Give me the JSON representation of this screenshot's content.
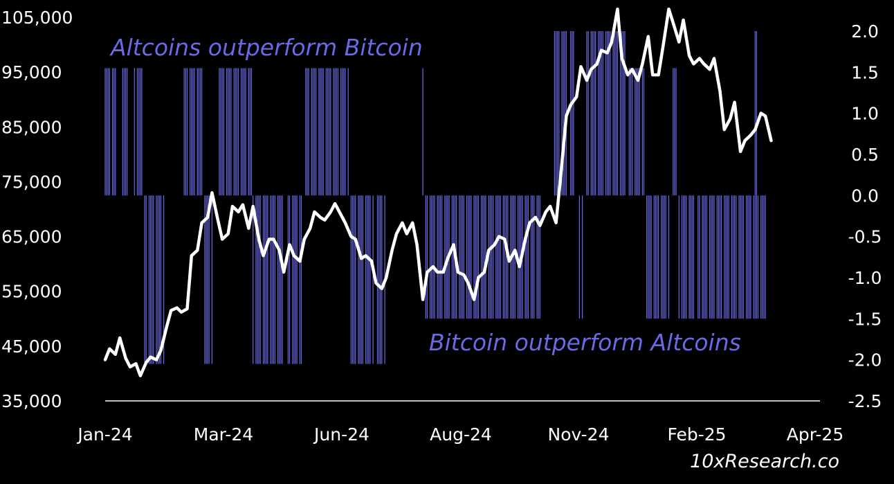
{
  "chart_data": {
    "type": "line",
    "title": "",
    "xlabel": "",
    "ylabel": "",
    "y_left": {
      "ticks": [
        35000,
        45000,
        55000,
        65000,
        75000,
        85000,
        95000,
        105000
      ],
      "tick_labels": [
        "35,000",
        "45,000",
        "55,000",
        "65,000",
        "75,000",
        "85,000",
        "95,000",
        "105,000"
      ],
      "range": [
        35000,
        105000
      ]
    },
    "y_right": {
      "ticks": [
        -2.5,
        -2.0,
        -1.5,
        -1.0,
        -0.5,
        0.0,
        0.5,
        1.0,
        1.5,
        2.0
      ],
      "tick_labels": [
        "-2.5",
        "-2.0",
        "-1.5",
        "-1.0",
        "-0.5",
        "0.0",
        "0.5",
        "1.0",
        "1.5",
        "2.0"
      ],
      "range": [
        -2.5,
        2.0
      ]
    },
    "x_axis": {
      "tick_labels": [
        "Jan-24",
        "Mar-24",
        "Jun-24",
        "Aug-24",
        "Nov-24",
        "Feb-25",
        "Apr-25"
      ],
      "range": [
        "2024-01-01",
        "2025-04-30"
      ]
    },
    "annotations": {
      "top": "Altcoins outperform Bitcoin",
      "bottom": "Bitcoin outperform Altcoins"
    },
    "watermark": "10xResearch.co",
    "colors": {
      "price_line": "#ffffff",
      "bars": "#6a6ae6",
      "background": "#000000",
      "axis": "#ffffff"
    },
    "series": [
      {
        "axis": "left",
        "points": [
          [
            "2024-01-01",
            42500
          ],
          [
            "2024-01-04",
            44500
          ],
          [
            "2024-01-08",
            43500
          ],
          [
            "2024-01-11",
            46500
          ],
          [
            "2024-01-15",
            42800
          ],
          [
            "2024-01-18",
            41200
          ],
          [
            "2024-01-22",
            41800
          ],
          [
            "2024-01-25",
            39600
          ],
          [
            "2024-01-29",
            42000
          ],
          [
            "2024-02-01",
            43000
          ],
          [
            "2024-02-05",
            42500
          ],
          [
            "2024-02-08",
            44200
          ],
          [
            "2024-02-12",
            48500
          ],
          [
            "2024-02-15",
            51500
          ],
          [
            "2024-02-19",
            52000
          ],
          [
            "2024-02-22",
            51200
          ],
          [
            "2024-02-26",
            51800
          ],
          [
            "2024-02-29",
            61500
          ],
          [
            "2024-03-04",
            62500
          ],
          [
            "2024-03-07",
            67500
          ],
          [
            "2024-03-11",
            68500
          ],
          [
            "2024-03-14",
            73000
          ],
          [
            "2024-03-18",
            68000
          ],
          [
            "2024-03-21",
            64500
          ],
          [
            "2024-03-25",
            65500
          ],
          [
            "2024-03-28",
            70500
          ],
          [
            "2024-04-01",
            69500
          ],
          [
            "2024-04-04",
            70800
          ],
          [
            "2024-04-08",
            66500
          ],
          [
            "2024-04-11",
            70500
          ],
          [
            "2024-04-15",
            64500
          ],
          [
            "2024-04-18",
            61500
          ],
          [
            "2024-04-22",
            64500
          ],
          [
            "2024-04-25",
            64500
          ],
          [
            "2024-04-29",
            62500
          ],
          [
            "2024-05-02",
            58500
          ],
          [
            "2024-05-06",
            63500
          ],
          [
            "2024-05-09",
            61500
          ],
          [
            "2024-05-13",
            60500
          ],
          [
            "2024-05-16",
            64500
          ],
          [
            "2024-05-20",
            66500
          ],
          [
            "2024-05-23",
            69500
          ],
          [
            "2024-05-27",
            68500
          ],
          [
            "2024-05-30",
            68000
          ],
          [
            "2024-06-03",
            69500
          ],
          [
            "2024-06-06",
            71000
          ],
          [
            "2024-06-10",
            69000
          ],
          [
            "2024-06-13",
            67500
          ],
          [
            "2024-06-17",
            65000
          ],
          [
            "2024-06-20",
            64500
          ],
          [
            "2024-06-24",
            61000
          ],
          [
            "2024-06-27",
            61500
          ],
          [
            "2024-07-01",
            60500
          ],
          [
            "2024-07-04",
            56500
          ],
          [
            "2024-07-08",
            55500
          ],
          [
            "2024-07-11",
            57500
          ],
          [
            "2024-07-15",
            62500
          ],
          [
            "2024-07-18",
            65500
          ],
          [
            "2024-07-22",
            67500
          ],
          [
            "2024-07-25",
            65500
          ],
          [
            "2024-07-29",
            67500
          ],
          [
            "2024-08-01",
            63500
          ],
          [
            "2024-08-05",
            53500
          ],
          [
            "2024-08-08",
            58500
          ],
          [
            "2024-08-12",
            59500
          ],
          [
            "2024-08-15",
            58500
          ],
          [
            "2024-08-19",
            58500
          ],
          [
            "2024-08-22",
            61000
          ],
          [
            "2024-08-26",
            63500
          ],
          [
            "2024-08-29",
            58500
          ],
          [
            "2024-09-02",
            58000
          ],
          [
            "2024-09-05",
            56500
          ],
          [
            "2024-09-09",
            53500
          ],
          [
            "2024-09-12",
            57500
          ],
          [
            "2024-09-16",
            58500
          ],
          [
            "2024-09-19",
            62500
          ],
          [
            "2024-09-23",
            63500
          ],
          [
            "2024-09-26",
            65000
          ],
          [
            "2024-09-30",
            64500
          ],
          [
            "2024-10-03",
            60500
          ],
          [
            "2024-10-07",
            62500
          ],
          [
            "2024-10-10",
            59500
          ],
          [
            "2024-10-14",
            64500
          ],
          [
            "2024-10-17",
            67500
          ],
          [
            "2024-10-21",
            68500
          ],
          [
            "2024-10-24",
            67000
          ],
          [
            "2024-10-28",
            69500
          ],
          [
            "2024-10-31",
            70500
          ],
          [
            "2024-11-04",
            67500
          ],
          [
            "2024-11-07",
            75500
          ],
          [
            "2024-11-11",
            87000
          ],
          [
            "2024-11-14",
            89000
          ],
          [
            "2024-11-18",
            90500
          ],
          [
            "2024-11-21",
            96000
          ],
          [
            "2024-11-25",
            93500
          ],
          [
            "2024-11-28",
            95500
          ],
          [
            "2024-12-02",
            96500
          ],
          [
            "2024-12-05",
            99000
          ],
          [
            "2024-12-09",
            98500
          ],
          [
            "2024-12-12",
            100500
          ],
          [
            "2024-12-16",
            106500
          ],
          [
            "2024-12-19",
            97500
          ],
          [
            "2024-12-23",
            94500
          ],
          [
            "2024-12-26",
            95500
          ],
          [
            "2024-12-30",
            93500
          ],
          [
            "2025-01-02",
            96500
          ],
          [
            "2025-01-06",
            101500
          ],
          [
            "2025-01-09",
            94500
          ],
          [
            "2025-01-13",
            94500
          ],
          [
            "2025-01-16",
            99500
          ],
          [
            "2025-01-20",
            106500
          ],
          [
            "2025-01-23",
            104000
          ],
          [
            "2025-01-27",
            100500
          ],
          [
            "2025-01-30",
            104500
          ],
          [
            "2025-02-03",
            98000
          ],
          [
            "2025-02-06",
            96500
          ],
          [
            "2025-02-10",
            97500
          ],
          [
            "2025-02-13",
            96500
          ],
          [
            "2025-02-17",
            95500
          ],
          [
            "2025-02-20",
            97500
          ],
          [
            "2025-02-24",
            91500
          ],
          [
            "2025-02-27",
            84500
          ],
          [
            "2025-03-03",
            86500
          ],
          [
            "2025-03-06",
            89500
          ],
          [
            "2025-03-10",
            80500
          ],
          [
            "2025-03-13",
            82500
          ],
          [
            "2025-03-17",
            83500
          ],
          [
            "2025-03-20",
            84500
          ],
          [
            "2025-03-24",
            87500
          ],
          [
            "2025-03-27",
            87000
          ],
          [
            "2025-03-31",
            82500
          ]
        ]
      }
    ],
    "bars": {
      "axis": "right",
      "up_value": 1.55,
      "up_value_dense": 2.0,
      "down_value": -1.5,
      "down_value_long": -2.05,
      "periods": [
        {
          "start": "2024-01-01",
          "end": "2024-01-08",
          "dir": "up"
        },
        {
          "start": "2024-01-12",
          "end": "2024-01-17",
          "dir": "up",
          "level": "long"
        },
        {
          "start": "2024-01-21",
          "end": "2024-01-26",
          "dir": "up"
        },
        {
          "start": "2024-01-28",
          "end": "2024-02-10",
          "dir": "down",
          "level": "long"
        },
        {
          "start": "2024-02-24",
          "end": "2024-03-08",
          "dir": "up"
        },
        {
          "start": "2024-03-09",
          "end": "2024-03-14",
          "dir": "down",
          "level": "long"
        },
        {
          "start": "2024-03-18",
          "end": "2024-04-10",
          "dir": "up"
        },
        {
          "start": "2024-04-11",
          "end": "2024-05-02",
          "dir": "down",
          "level": "long"
        },
        {
          "start": "2024-05-05",
          "end": "2024-05-14",
          "dir": "down",
          "level": "long"
        },
        {
          "start": "2024-05-17",
          "end": "2024-06-15",
          "dir": "up"
        },
        {
          "start": "2024-06-17",
          "end": "2024-07-02",
          "dir": "down",
          "level": "long"
        },
        {
          "start": "2024-07-04",
          "end": "2024-07-10",
          "dir": "down",
          "level": "long"
        },
        {
          "start": "2024-08-05",
          "end": "2024-08-06",
          "dir": "up"
        },
        {
          "start": "2024-08-07",
          "end": "2024-10-16",
          "dir": "down"
        },
        {
          "start": "2024-10-18",
          "end": "2024-10-24",
          "dir": "down"
        },
        {
          "start": "2024-11-03",
          "end": "2024-11-12",
          "dir": "up",
          "level": "dense"
        },
        {
          "start": "2024-11-13",
          "end": "2024-11-16",
          "dir": "up",
          "level": "dense"
        },
        {
          "start": "2024-11-20",
          "end": "2024-11-22",
          "dir": "down"
        },
        {
          "start": "2024-11-25",
          "end": "2024-12-21",
          "dir": "up",
          "level": "dense"
        },
        {
          "start": "2024-12-24",
          "end": "2025-01-03",
          "dir": "up"
        },
        {
          "start": "2025-01-05",
          "end": "2025-01-20",
          "dir": "down"
        },
        {
          "start": "2025-01-22",
          "end": "2025-01-25",
          "dir": "up"
        },
        {
          "start": "2025-01-27",
          "end": "2025-02-07",
          "dir": "down"
        },
        {
          "start": "2025-02-09",
          "end": "2025-03-28",
          "dir": "down"
        },
        {
          "start": "2025-03-20",
          "end": "2025-03-21",
          "dir": "up",
          "level": "dense"
        }
      ]
    }
  }
}
